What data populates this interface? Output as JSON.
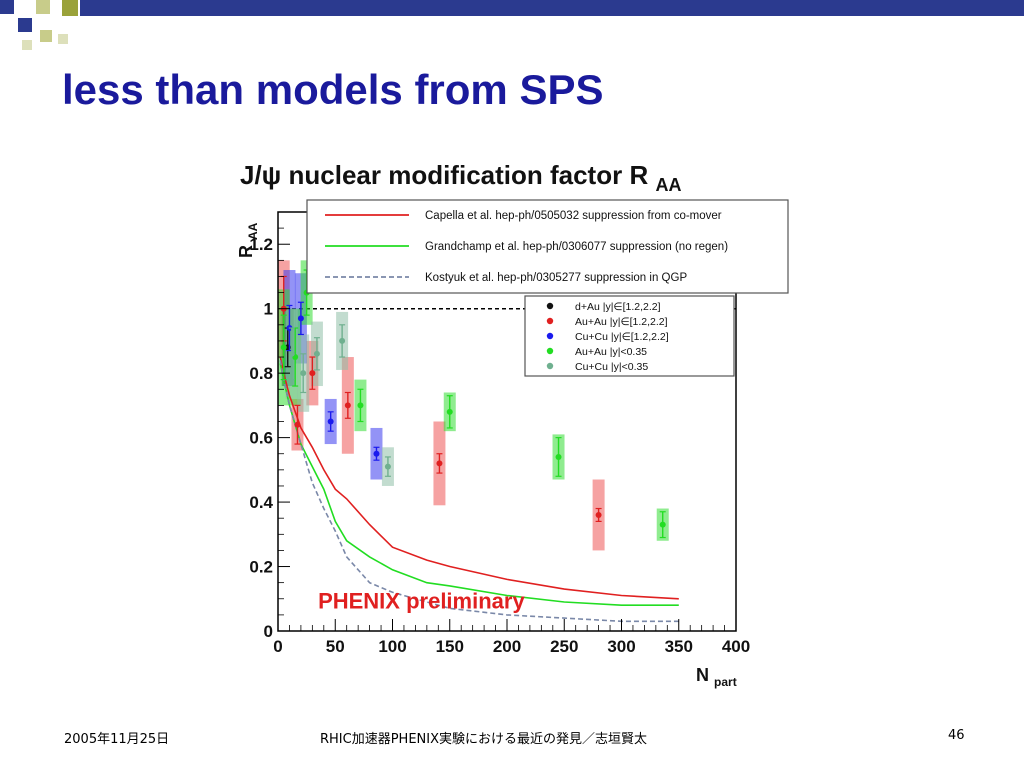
{
  "slide": {
    "title": "less than models from SPS",
    "footer_date": "2005年11月25日",
    "footer_center": "RHIC加速器PHENIX実験における最近の発見／志垣賢太",
    "page_number": "46"
  },
  "colors": {
    "title": "#1a1a9c",
    "accent_blue": "#2b3a8f",
    "accent_olive": "#9aa23a"
  },
  "chart_data": {
    "type": "scatter",
    "title": "J/ψ nuclear modification factor R",
    "title_sub": "AA",
    "xlabel": "N",
    "xlabel_sub": "part",
    "ylabel": "R",
    "ylabel_sub": "AA",
    "xlim": [
      0,
      400
    ],
    "ylim": [
      0,
      1.3
    ],
    "xticks": [
      0,
      50,
      100,
      150,
      200,
      250,
      300,
      350,
      400
    ],
    "yticks": [
      0,
      0.2,
      0.4,
      0.6,
      0.8,
      1,
      1.2
    ],
    "reference_line": 1,
    "watermark": "PHENIX preliminary",
    "watermark_color": "#e02020",
    "models": [
      {
        "name": "Capella et al. hep-ph/0505032 suppression from co-mover",
        "color": "#e02020",
        "style": "solid",
        "x": [
          2,
          5,
          10,
          20,
          30,
          40,
          50,
          60,
          80,
          100,
          130,
          150,
          200,
          250,
          300,
          350
        ],
        "y": [
          0.85,
          0.8,
          0.73,
          0.63,
          0.57,
          0.5,
          0.44,
          0.41,
          0.33,
          0.26,
          0.22,
          0.2,
          0.16,
          0.13,
          0.11,
          0.1
        ]
      },
      {
        "name": "Grandchamp et al. hep-ph/0306077 suppression (no regen)",
        "color": "#22dd22",
        "style": "solid",
        "x": [
          2,
          5,
          10,
          20,
          30,
          40,
          50,
          60,
          80,
          100,
          130,
          150,
          200,
          250,
          300,
          350
        ],
        "y": [
          0.83,
          0.78,
          0.7,
          0.58,
          0.51,
          0.44,
          0.34,
          0.28,
          0.23,
          0.19,
          0.15,
          0.14,
          0.11,
          0.09,
          0.08,
          0.08
        ]
      },
      {
        "name": "Kostyuk et al. hep-ph/0305277 suppression in QGP",
        "color": "#7a88a8",
        "style": "dashed",
        "x": [
          2,
          5,
          10,
          20,
          30,
          40,
          50,
          60,
          80,
          100,
          130,
          150,
          200,
          250,
          300,
          350
        ],
        "y": [
          0.84,
          0.78,
          0.7,
          0.58,
          0.46,
          0.38,
          0.31,
          0.23,
          0.15,
          0.12,
          0.09,
          0.07,
          0.05,
          0.04,
          0.03,
          0.03
        ]
      }
    ],
    "datasets": [
      {
        "name": "d+Au |y|∈[1.2,2.2]",
        "color": "#111111",
        "box_color": "#222222",
        "points": [
          {
            "x": 8.5,
            "y": 0.88,
            "err": 0.06,
            "sys": 0.12
          }
        ]
      },
      {
        "name": "Au+Au |y|∈[1.2,2.2]",
        "color": "#e02020",
        "box_color": "#ee5555",
        "points": [
          {
            "x": 5,
            "y": 1.0,
            "err": 0.1,
            "sys": 0.15
          },
          {
            "x": 17,
            "y": 0.64,
            "err": 0.06,
            "sys": 0.08
          },
          {
            "x": 30,
            "y": 0.8,
            "err": 0.05,
            "sys": 0.1
          },
          {
            "x": 61,
            "y": 0.7,
            "err": 0.04,
            "sys": 0.15
          },
          {
            "x": 141,
            "y": 0.52,
            "err": 0.03,
            "sys": 0.13
          },
          {
            "x": 280,
            "y": 0.36,
            "err": 0.02,
            "sys": 0.11
          }
        ]
      },
      {
        "name": "Cu+Cu |y|∈[1.2,2.2]",
        "color": "#1a1aee",
        "box_color": "#3a3aee",
        "points": [
          {
            "x": 10,
            "y": 0.94,
            "err": 0.07,
            "sys": 0.18
          },
          {
            "x": 20,
            "y": 0.97,
            "err": 0.05,
            "sys": 0.14
          },
          {
            "x": 46,
            "y": 0.65,
            "err": 0.03,
            "sys": 0.07
          },
          {
            "x": 86,
            "y": 0.55,
            "err": 0.02,
            "sys": 0.08
          }
        ]
      },
      {
        "name": "Au+Au |y|<0.35",
        "color": "#22dd22",
        "box_color": "#33dd33",
        "points": [
          {
            "x": 5,
            "y": 0.88,
            "err": 0.1,
            "sys": 0.18
          },
          {
            "x": 15,
            "y": 0.85,
            "err": 0.09,
            "sys": 0.15
          },
          {
            "x": 25,
            "y": 1.05,
            "err": 0.07,
            "sys": 0.1
          },
          {
            "x": 72,
            "y": 0.7,
            "err": 0.05,
            "sys": 0.08
          },
          {
            "x": 150,
            "y": 0.68,
            "err": 0.05,
            "sys": 0.06
          },
          {
            "x": 245,
            "y": 0.54,
            "err": 0.06,
            "sys": 0.07
          },
          {
            "x": 336,
            "y": 0.33,
            "err": 0.04,
            "sys": 0.05
          }
        ]
      },
      {
        "name": "Cu+Cu |y|<0.35",
        "color": "#6fb08f",
        "box_color": "#8fc0a8",
        "points": [
          {
            "x": 12,
            "y": 0.86,
            "err": 0.08,
            "sys": 0.14
          },
          {
            "x": 22,
            "y": 0.8,
            "err": 0.06,
            "sys": 0.12
          },
          {
            "x": 34,
            "y": 0.86,
            "err": 0.05,
            "sys": 0.1
          },
          {
            "x": 56,
            "y": 0.9,
            "err": 0.05,
            "sys": 0.09
          },
          {
            "x": 96,
            "y": 0.51,
            "err": 0.03,
            "sys": 0.06
          }
        ]
      }
    ]
  }
}
